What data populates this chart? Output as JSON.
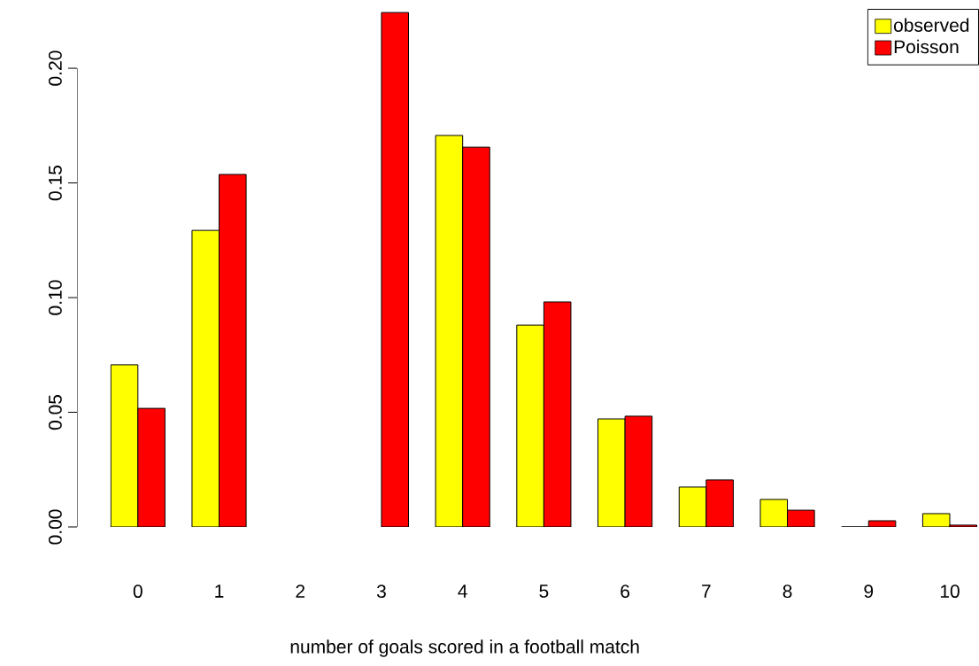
{
  "chart_data": {
    "type": "bar",
    "xlabel": "number of goals scored in a football match",
    "categories": [
      "0",
      "1",
      "2",
      "3",
      "4",
      "5",
      "6",
      "7",
      "8",
      "9",
      "10"
    ],
    "series": [
      {
        "name": "observed",
        "color": "#ffff00",
        "values": [
          0.0707,
          0.1293,
          null,
          null,
          0.1707,
          0.088,
          0.0471,
          0.0174,
          0.012,
          0,
          0.0058
        ]
      },
      {
        "name": "Poisson",
        "color": "#ff0000",
        "values": [
          0.0517,
          0.1537,
          null,
          0.2243,
          0.1656,
          0.0981,
          0.0483,
          0.0205,
          0.0073,
          0.0027,
          0.0008
        ]
      }
    ],
    "ylim": [
      0,
      0.2259
    ],
    "yticks": [
      {
        "value": 0,
        "label": "0.00"
      },
      {
        "value": 0.05,
        "label": "0.05"
      },
      {
        "value": 0.1,
        "label": "0.10"
      },
      {
        "value": 0.15,
        "label": "0.15"
      },
      {
        "value": 0.2,
        "label": "0.20"
      }
    ],
    "legend": "top right",
    "grid": false
  }
}
